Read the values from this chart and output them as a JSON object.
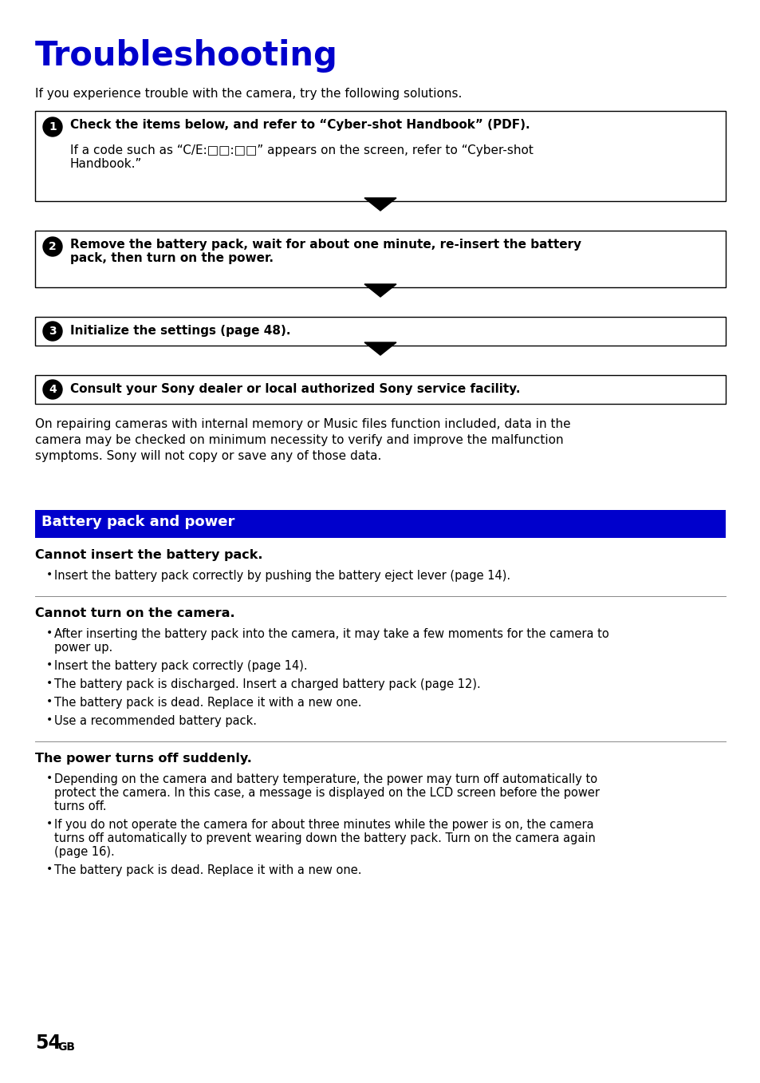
{
  "title": "Troubleshooting",
  "title_color": "#0000CC",
  "bg_color": "#FFFFFF",
  "intro_text": "If you experience trouble with the camera, try the following solutions.",
  "steps": [
    {
      "num": "1",
      "bold_text": "Check the items below, and refer to “Cyber-shot Handbook” (PDF).",
      "body_text": "If a code such as “C/E:□□:□□” appears on the screen, refer to “Cyber-shot\nHandbook.”"
    },
    {
      "num": "2",
      "bold_text": "Remove the battery pack, wait for about one minute, re-insert the battery\npack, then turn on the power.",
      "body_text": ""
    },
    {
      "num": "3",
      "bold_text": "Initialize the settings (page 48).",
      "body_text": ""
    },
    {
      "num": "4",
      "bold_text": "Consult your Sony dealer or local authorized Sony service facility.",
      "body_text": ""
    }
  ],
  "repair_text": "On repairing cameras with internal memory or Music files function included, data in the\ncamera may be checked on minimum necessity to verify and improve the malfunction\nsymptoms. Sony will not copy or save any of those data.",
  "section_header": "Battery pack and power",
  "section_header_bg": "#0000CC",
  "section_header_color": "#FFFFFF",
  "subsections": [
    {
      "title": "Cannot insert the battery pack.",
      "bullets": [
        "Insert the battery pack correctly by pushing the battery eject lever (page 14)."
      ]
    },
    {
      "title": "Cannot turn on the camera.",
      "bullets": [
        "After inserting the battery pack into the camera, it may take a few moments for the camera to\npower up.",
        "Insert the battery pack correctly (page 14).",
        "The battery pack is discharged. Insert a charged battery pack (page 12).",
        "The battery pack is dead. Replace it with a new one.",
        "Use a recommended battery pack."
      ]
    },
    {
      "title": "The power turns off suddenly.",
      "bullets": [
        "Depending on the camera and battery temperature, the power may turn off automatically to\nprotect the camera. In this case, a message is displayed on the LCD screen before the power\nturns off.",
        "If you do not operate the camera for about three minutes while the power is on, the camera\nturns off automatically to prevent wearing down the battery pack. Turn on the camera again\n(page 16).",
        "The battery pack is dead. Replace it with a new one."
      ]
    }
  ],
  "page_number": "54",
  "page_number_super": "GB"
}
